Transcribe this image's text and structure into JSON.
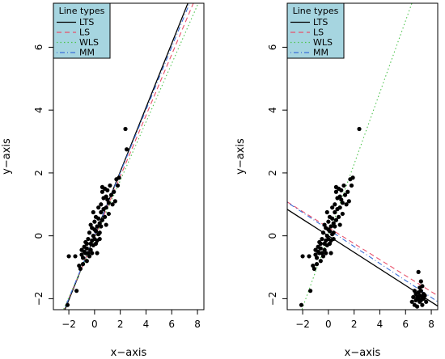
{
  "chart_data": [
    {
      "type": "scatter",
      "xlabel": "x−axis",
      "ylabel": "y−axis",
      "xlim": [
        -3.2,
        8.5
      ],
      "ylim": [
        -2.35,
        7.4
      ],
      "x_ticks": [
        -2,
        0,
        2,
        4,
        6,
        8
      ],
      "y_ticks": [
        -2,
        0,
        2,
        4,
        6
      ],
      "x_tick_labels": [
        "−2",
        "0",
        "2",
        "4",
        "6",
        "8"
      ],
      "y_tick_labels": [
        "−2",
        "0",
        "2",
        "4",
        "6"
      ],
      "grid": false,
      "legend": {
        "title": "Line types",
        "placement": "top-left",
        "background": "#a6d5e0",
        "entries": [
          "LTS",
          "LS",
          "WLS",
          "MM"
        ]
      },
      "lines": [
        {
          "name": "LTS",
          "intercept": 0.0,
          "slope": 1.02,
          "color": "#000000",
          "dash": "solid"
        },
        {
          "name": "LS",
          "intercept": -0.05,
          "slope": 0.97,
          "color": "#e8506a",
          "dash": "dashed"
        },
        {
          "name": "WLS",
          "intercept": -0.1,
          "slope": 0.93,
          "color": "#4fc44f",
          "dash": "dotted"
        },
        {
          "name": "MM",
          "intercept": 0.01,
          "slope": 1.0,
          "color": "#3a6fd8",
          "dash": "dotdash"
        }
      ],
      "points": [
        [
          -2.1,
          -2.2
        ],
        [
          -1.4,
          -1.75
        ],
        [
          -2.0,
          -0.65
        ],
        [
          -1.5,
          -0.65
        ],
        [
          -1.2,
          -0.95
        ],
        [
          -1.1,
          -1.05
        ],
        [
          -1.0,
          -0.45
        ],
        [
          -1.0,
          -0.6
        ],
        [
          -0.9,
          -0.7
        ],
        [
          -0.9,
          -0.9
        ],
        [
          -0.8,
          -0.35
        ],
        [
          -0.8,
          -0.5
        ],
        [
          -0.7,
          -0.2
        ],
        [
          -0.7,
          -0.55
        ],
        [
          -0.6,
          -0.8
        ],
        [
          -0.6,
          -0.4
        ],
        [
          -0.5,
          -0.1
        ],
        [
          -0.5,
          -0.55
        ],
        [
          -0.4,
          -0.65
        ],
        [
          -0.4,
          0.1
        ],
        [
          -0.3,
          -0.25
        ],
        [
          -0.3,
          -0.45
        ],
        [
          -0.3,
          0.35
        ],
        [
          -0.2,
          -0.15
        ],
        [
          -0.2,
          0.25
        ],
        [
          -0.2,
          -0.55
        ],
        [
          -0.1,
          0.0
        ],
        [
          -0.1,
          -0.3
        ],
        [
          -0.1,
          0.75
        ],
        [
          0.0,
          0.2
        ],
        [
          0.0,
          -0.1
        ],
        [
          0.0,
          0.45
        ],
        [
          0.1,
          -0.25
        ],
        [
          0.1,
          0.6
        ],
        [
          0.1,
          0.15
        ],
        [
          0.2,
          -0.15
        ],
        [
          0.2,
          0.3
        ],
        [
          0.2,
          -0.55
        ],
        [
          0.3,
          0.55
        ],
        [
          0.3,
          0.05
        ],
        [
          0.3,
          0.9
        ],
        [
          0.4,
          0.4
        ],
        [
          0.4,
          -0.1
        ],
        [
          0.4,
          0.1
        ],
        [
          0.5,
          0.75
        ],
        [
          0.5,
          1.0
        ],
        [
          0.5,
          0.3
        ],
        [
          0.6,
          1.4
        ],
        [
          0.6,
          0.5
        ],
        [
          0.7,
          0.85
        ],
        [
          0.7,
          1.2
        ],
        [
          0.8,
          0.6
        ],
        [
          0.8,
          1.5
        ],
        [
          0.9,
          0.9
        ],
        [
          0.9,
          1.25
        ],
        [
          1.0,
          1.15
        ],
        [
          1.0,
          1.45
        ],
        [
          1.1,
          0.7
        ],
        [
          1.1,
          1.05
        ],
        [
          1.2,
          1.6
        ],
        [
          1.3,
          1.3
        ],
        [
          1.4,
          1.0
        ],
        [
          1.5,
          1.4
        ],
        [
          1.6,
          1.1
        ],
        [
          1.7,
          1.8
        ],
        [
          1.8,
          1.6
        ],
        [
          1.9,
          1.85
        ],
        [
          0.6,
          1.55
        ],
        [
          0.9,
          0.35
        ],
        [
          -0.6,
          -0.25
        ],
        [
          2.4,
          3.4
        ],
        [
          2.5,
          2.75
        ]
      ]
    },
    {
      "type": "scatter",
      "xlabel": "x−axis",
      "ylabel": "y−axis",
      "xlim": [
        -3.2,
        8.5
      ],
      "ylim": [
        -2.35,
        7.4
      ],
      "x_ticks": [
        -2,
        0,
        2,
        4,
        6,
        8
      ],
      "y_ticks": [
        -2,
        0,
        2,
        4,
        6
      ],
      "x_tick_labels": [
        "−2",
        "0",
        "2",
        "4",
        "6",
        "8"
      ],
      "y_tick_labels": [
        "−2",
        "0",
        "2",
        "4",
        "6"
      ],
      "grid": false,
      "legend": {
        "title": "Line types",
        "placement": "top-left",
        "background": "#a6d5e0",
        "entries": [
          "LTS",
          "LS",
          "WLS",
          "MM"
        ]
      },
      "lines": [
        {
          "name": "LTS",
          "intercept": 0.0,
          "slope": -0.263,
          "color": "#000000",
          "dash": "solid"
        },
        {
          "name": "LS",
          "intercept": 0.263,
          "slope": -0.255,
          "color": "#e8506a",
          "dash": "dashed"
        },
        {
          "name": "WLS",
          "intercept": 0.0,
          "slope": 1.14,
          "color": "#4fc44f",
          "dash": "dotted"
        },
        {
          "name": "MM",
          "intercept": 0.2,
          "slope": -0.27,
          "color": "#3a6fd8",
          "dash": "dotdash"
        }
      ],
      "points": [
        [
          -2.1,
          -2.2
        ],
        [
          -1.4,
          -1.75
        ],
        [
          -2.0,
          -0.65
        ],
        [
          -1.5,
          -0.65
        ],
        [
          -1.2,
          -0.95
        ],
        [
          -1.1,
          -1.05
        ],
        [
          -1.0,
          -0.45
        ],
        [
          -1.0,
          -0.6
        ],
        [
          -0.9,
          -0.7
        ],
        [
          -0.9,
          -0.9
        ],
        [
          -0.8,
          -0.35
        ],
        [
          -0.8,
          -0.5
        ],
        [
          -0.7,
          -0.2
        ],
        [
          -0.7,
          -0.55
        ],
        [
          -0.6,
          -0.8
        ],
        [
          -0.6,
          -0.4
        ],
        [
          -0.5,
          -0.1
        ],
        [
          -0.5,
          -0.55
        ],
        [
          -0.4,
          -0.65
        ],
        [
          -0.4,
          0.1
        ],
        [
          -0.3,
          -0.25
        ],
        [
          -0.3,
          -0.45
        ],
        [
          -0.3,
          0.35
        ],
        [
          -0.2,
          -0.15
        ],
        [
          -0.2,
          0.25
        ],
        [
          -0.2,
          -0.55
        ],
        [
          -0.1,
          0.0
        ],
        [
          -0.1,
          -0.3
        ],
        [
          -0.1,
          0.75
        ],
        [
          0.0,
          0.2
        ],
        [
          0.0,
          -0.1
        ],
        [
          0.0,
          0.45
        ],
        [
          0.1,
          -0.25
        ],
        [
          0.1,
          0.6
        ],
        [
          0.1,
          0.15
        ],
        [
          0.2,
          -0.15
        ],
        [
          0.2,
          0.3
        ],
        [
          0.2,
          -0.55
        ],
        [
          0.3,
          0.55
        ],
        [
          0.3,
          0.05
        ],
        [
          0.3,
          0.9
        ],
        [
          0.4,
          0.4
        ],
        [
          0.4,
          -0.1
        ],
        [
          0.4,
          0.1
        ],
        [
          0.5,
          0.75
        ],
        [
          0.5,
          1.0
        ],
        [
          0.5,
          0.3
        ],
        [
          0.6,
          1.4
        ],
        [
          0.6,
          0.5
        ],
        [
          0.7,
          0.85
        ],
        [
          0.7,
          1.2
        ],
        [
          0.8,
          0.6
        ],
        [
          0.8,
          1.5
        ],
        [
          0.9,
          0.9
        ],
        [
          0.9,
          1.25
        ],
        [
          1.0,
          1.15
        ],
        [
          1.0,
          1.45
        ],
        [
          1.1,
          0.7
        ],
        [
          1.1,
          1.05
        ],
        [
          1.2,
          1.6
        ],
        [
          1.3,
          1.3
        ],
        [
          1.4,
          1.0
        ],
        [
          1.5,
          1.4
        ],
        [
          1.6,
          1.1
        ],
        [
          1.7,
          1.8
        ],
        [
          1.8,
          1.6
        ],
        [
          1.9,
          1.85
        ],
        [
          0.6,
          1.55
        ],
        [
          0.9,
          0.35
        ],
        [
          -0.6,
          -0.25
        ],
        [
          2.4,
          3.4
        ],
        [
          6.5,
          -2.1
        ],
        [
          6.6,
          -1.95
        ],
        [
          6.7,
          -2.2
        ],
        [
          6.8,
          -1.85
        ],
        [
          6.8,
          -2.05
        ],
        [
          6.9,
          -1.95
        ],
        [
          6.9,
          -2.25
        ],
        [
          7.0,
          -1.8
        ],
        [
          7.0,
          -2.0
        ],
        [
          7.1,
          -2.1
        ],
        [
          7.1,
          -1.9
        ],
        [
          7.2,
          -1.75
        ],
        [
          7.2,
          -2.05
        ],
        [
          7.3,
          -1.95
        ],
        [
          7.3,
          -2.2
        ],
        [
          7.4,
          -1.85
        ],
        [
          7.4,
          -2.0
        ],
        [
          7.5,
          -1.9
        ],
        [
          7.6,
          -2.1
        ],
        [
          7.0,
          -1.15
        ],
        [
          7.2,
          -1.45
        ],
        [
          6.7,
          -1.75
        ],
        [
          7.1,
          -1.65
        ],
        [
          7.3,
          -1.6
        ]
      ]
    }
  ]
}
